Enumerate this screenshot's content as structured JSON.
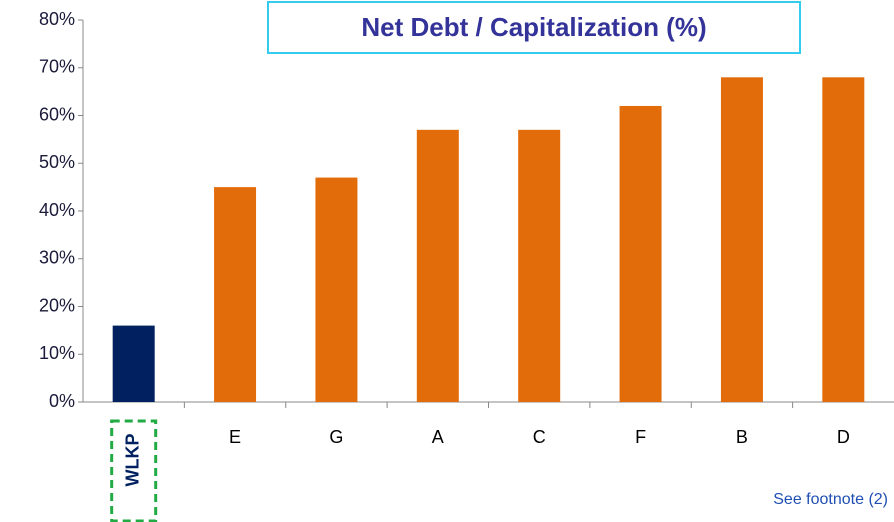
{
  "chart_data": {
    "type": "bar",
    "title": "Net Debt / Capitalization (%)",
    "categories": [
      "WLKP",
      "E",
      "G",
      "A",
      "C",
      "F",
      "B",
      "D"
    ],
    "values": [
      16,
      45,
      47,
      57,
      57,
      62,
      68,
      68
    ],
    "colors": [
      "#002060",
      "#e36c0a",
      "#e36c0a",
      "#e36c0a",
      "#e36c0a",
      "#e36c0a",
      "#e36c0a",
      "#e36c0a"
    ],
    "ylim": [
      0,
      80
    ],
    "yticks": [
      {
        "value": 0,
        "label": "0%"
      },
      {
        "value": 10,
        "label": "10%"
      },
      {
        "value": 20,
        "label": "20%"
      },
      {
        "value": 30,
        "label": "30%"
      },
      {
        "value": 40,
        "label": "40%"
      },
      {
        "value": 50,
        "label": "50%"
      },
      {
        "value": 60,
        "label": "60%"
      },
      {
        "value": 70,
        "label": "70%"
      },
      {
        "value": 80,
        "label": "80%"
      }
    ],
    "grid": false,
    "annotation": "See footnote (2)"
  }
}
